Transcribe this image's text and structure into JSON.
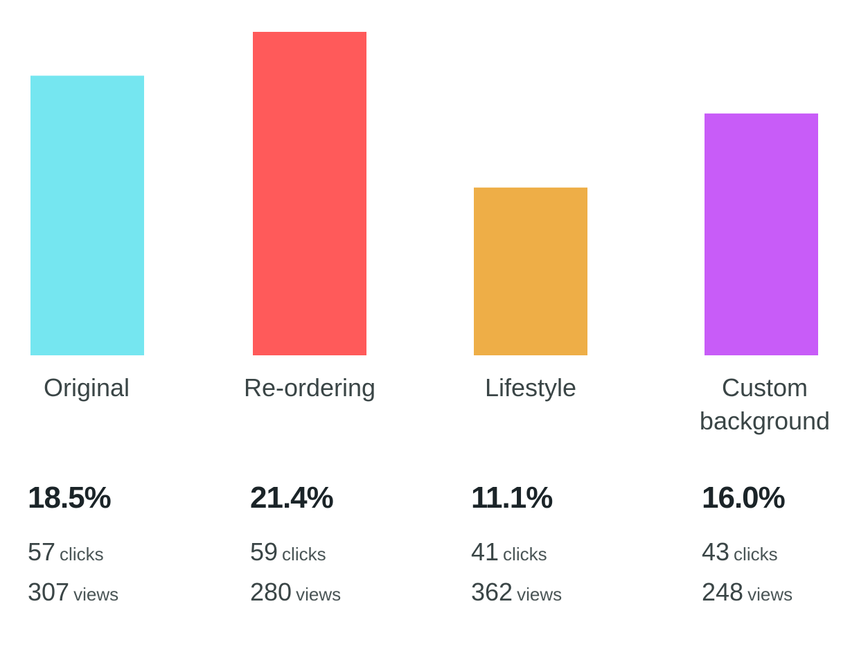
{
  "chart_data": {
    "type": "bar",
    "categories": [
      "Original",
      "Re-ordering",
      "Lifestyle",
      "Custom background"
    ],
    "category_lines": [
      [
        "Original"
      ],
      [
        "Re-ordering"
      ],
      [
        "Lifestyle"
      ],
      [
        "Custom",
        "background"
      ]
    ],
    "values": [
      18.5,
      21.4,
      11.1,
      16.0
    ],
    "rate_labels": [
      "18.5%",
      "21.4%",
      "11.1%",
      "16.0%"
    ],
    "clicks": [
      "57",
      "59",
      "41",
      "43"
    ],
    "views": [
      "307",
      "280",
      "362",
      "248"
    ],
    "clicks_unit": "clicks",
    "views_unit": "views",
    "colors": [
      "#75E6F0",
      "#FF5A5A",
      "#EEAE47",
      "#C85CF8"
    ],
    "ylim": [
      0,
      21.4
    ],
    "title": "",
    "xlabel": "",
    "ylabel": "",
    "grid": false,
    "legend": "none"
  }
}
